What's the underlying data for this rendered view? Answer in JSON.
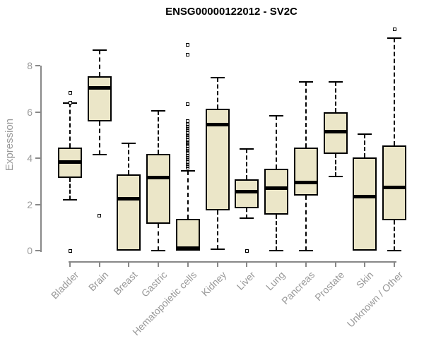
{
  "chart_data": {
    "type": "boxplot",
    "title": "ENSG00000122012 - SV2C",
    "xlabel": "",
    "ylabel": "Expression",
    "yticks": [
      0,
      2,
      4,
      6,
      8
    ],
    "ylim": [
      0,
      9.7
    ],
    "grid": false,
    "legend": "none",
    "categories": [
      "Bladder",
      "Brain",
      "Breast",
      "Gastric",
      "Hematopoietic cells",
      "Kidney",
      "Liver",
      "Lung",
      "Pancreas",
      "Prostate",
      "Skin",
      "Unknown / Other"
    ],
    "series": [
      {
        "category": "Bladder",
        "whisker_low": 2.2,
        "q1": 3.15,
        "median": 3.85,
        "q3": 4.45,
        "whisker_high": 6.4,
        "outliers": [
          6.42,
          6.85,
          0
        ]
      },
      {
        "category": "Brain",
        "whisker_low": 4.15,
        "q1": 5.6,
        "median": 7.05,
        "q3": 7.55,
        "whisker_high": 8.7,
        "outliers": [
          1.5
        ]
      },
      {
        "category": "Breast",
        "whisker_low": 0,
        "q1": 0,
        "median": 2.25,
        "q3": 3.3,
        "whisker_high": 4.65,
        "outliers": []
      },
      {
        "category": "Gastric",
        "whisker_low": 0,
        "q1": 1.15,
        "median": 3.17,
        "q3": 4.2,
        "whisker_high": 6.05,
        "outliers": []
      },
      {
        "category": "Hematopoietic cells",
        "whisker_low": 0,
        "q1": 0,
        "median": 0.1,
        "q3": 1.38,
        "whisker_high": 3.45,
        "outliers": [
          3.6,
          3.65,
          3.7,
          3.75,
          3.8,
          3.85,
          3.9,
          3.95,
          4.0,
          4.05,
          4.1,
          4.15,
          4.2,
          4.25,
          4.3,
          4.35,
          4.4,
          4.45,
          4.5,
          4.55,
          4.6,
          4.65,
          4.7,
          4.75,
          4.8,
          4.85,
          4.9,
          4.95,
          5.0,
          5.05,
          5.1,
          5.15,
          5.2,
          5.25,
          5.3,
          5.35,
          5.4,
          5.45,
          5.5,
          5.55,
          5.6,
          6.35,
          8.5,
          8.9
        ]
      },
      {
        "category": "Kidney",
        "whisker_low": 0.05,
        "q1": 1.75,
        "median": 5.45,
        "q3": 6.15,
        "whisker_high": 7.5,
        "outliers": []
      },
      {
        "category": "Liver",
        "whisker_low": 1.4,
        "q1": 1.85,
        "median": 2.55,
        "q3": 3.1,
        "whisker_high": 4.4,
        "outliers": [
          0
        ]
      },
      {
        "category": "Lung",
        "whisker_low": 0,
        "q1": 1.55,
        "median": 2.7,
        "q3": 3.55,
        "whisker_high": 5.85,
        "outliers": []
      },
      {
        "category": "Pancreas",
        "whisker_low": 0,
        "q1": 2.4,
        "median": 2.95,
        "q3": 4.45,
        "whisker_high": 7.3,
        "outliers": []
      },
      {
        "category": "Prostate",
        "whisker_low": 3.2,
        "q1": 4.2,
        "median": 5.15,
        "q3": 6.0,
        "whisker_high": 7.3,
        "outliers": []
      },
      {
        "category": "Skin",
        "whisker_low": 0,
        "q1": 0,
        "median": 2.35,
        "q3": 4.05,
        "whisker_high": 5.05,
        "outliers": []
      },
      {
        "category": "Unknown / Other",
        "whisker_low": 0,
        "q1": 1.3,
        "median": 2.75,
        "q3": 4.55,
        "whisker_high": 9.2,
        "outliers": [
          9.6
        ]
      }
    ],
    "colors": {
      "box_fill": "#EBE6C8",
      "box_border": "#000000",
      "median": "#000000",
      "whisker": "#000000",
      "axis_line": "#888888",
      "tick_label": "#999999",
      "title": "#000000",
      "background": "#FFFFFF"
    }
  }
}
